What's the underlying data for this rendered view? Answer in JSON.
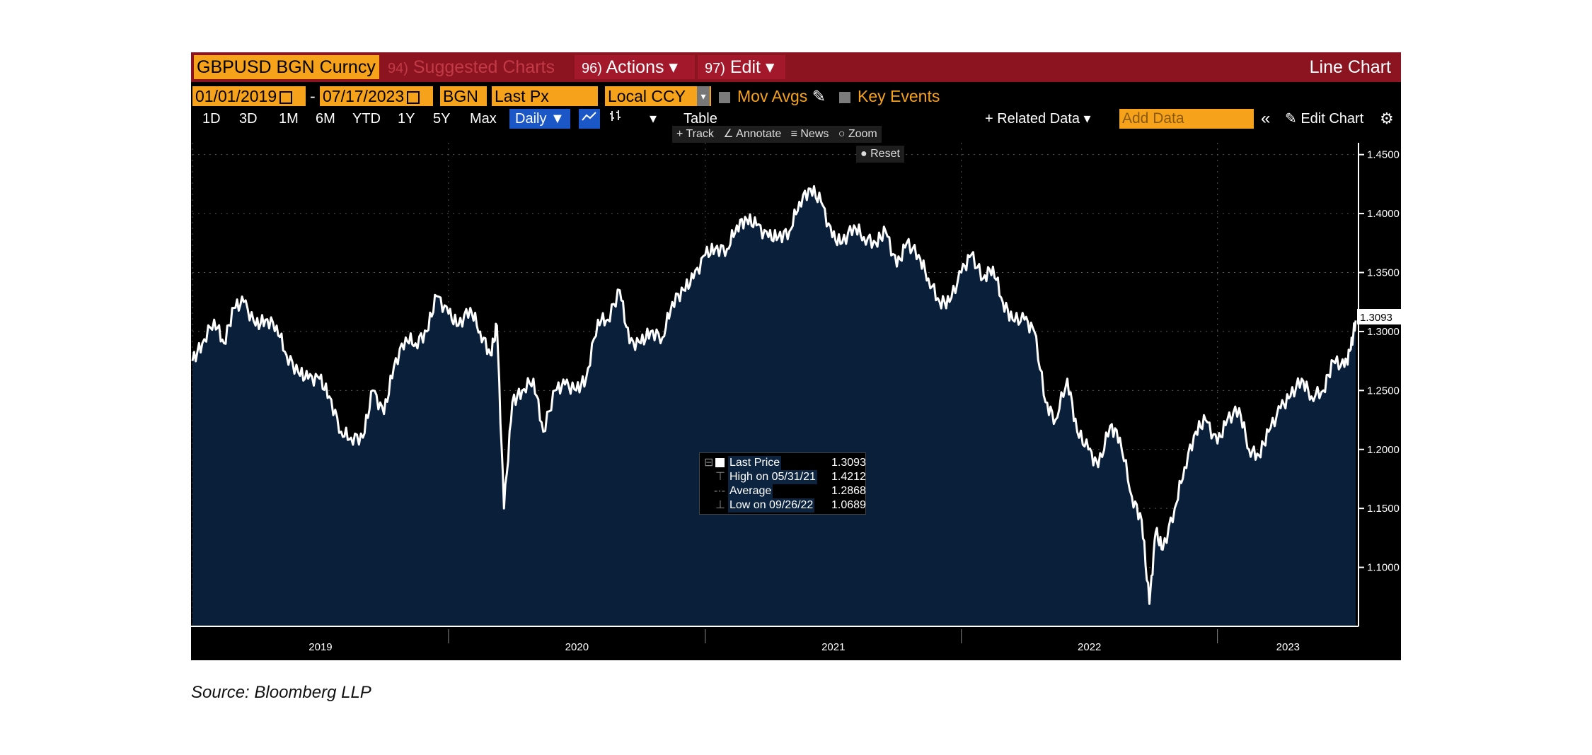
{
  "toolbar": {
    "ticker": "GBPUSD BGN Curncy",
    "suggested_num": "94)",
    "suggested_label": "Suggested Charts",
    "actions_num": "96)",
    "actions_label": "Actions ▾",
    "edit_num": "97)",
    "edit_label": "Edit ▾",
    "chart_type": "Line Chart"
  },
  "controls": {
    "start_date": "01/01/2019",
    "dash": "-",
    "end_date": "07/17/2023",
    "source": "BGN",
    "field": "Last Px",
    "currency": "Local CCY",
    "mov_avgs": "Mov Avgs",
    "key_events": "Key Events"
  },
  "ranges": [
    "1D",
    "3D",
    "1M",
    "6M",
    "YTD",
    "1Y",
    "5Y",
    "Max"
  ],
  "frequency": "Daily ▼",
  "table_label": "Table",
  "related_data": "+ Related Data ▾",
  "add_data_placeholder": "Add Data",
  "collapse_icon": "«",
  "edit_chart": "Edit Chart",
  "tools": {
    "track": "Track",
    "annotate": "Annotate",
    "news": "News",
    "zoom": "Zoom",
    "reset": "Reset"
  },
  "legend": {
    "last_label": "Last Price",
    "last_value": "1.3093",
    "high_label": "High on 05/31/21",
    "high_value": "1.4212",
    "avg_label": "Average",
    "avg_value": "1.2868",
    "low_label": "Low on 09/26/22",
    "low_value": "1.0689"
  },
  "source_text": "Source: Bloomberg LLP",
  "colors": {
    "line": "#ffffff",
    "area": "#0a1f3a",
    "header": "#8b1420",
    "field": "#f7a21b",
    "selected": "#1c57c8"
  },
  "chart_data": {
    "type": "area",
    "y_range": [
      1.05,
      1.46
    ],
    "x_range": [
      "2019-01-01",
      "2023-07-17"
    ],
    "yticks": [
      "1.1000",
      "1.1500",
      "1.2000",
      "1.2500",
      "1.3000",
      "1.3500",
      "1.4000",
      "1.4500"
    ],
    "xticks": [
      "2019",
      "2020",
      "2021",
      "2022",
      "2023"
    ],
    "last_value": "1.3093",
    "points": [
      [
        "2019-01-01",
        1.275
      ],
      [
        "2019-01-15",
        1.29
      ],
      [
        "2019-02-01",
        1.31
      ],
      [
        "2019-02-15",
        1.29
      ],
      [
        "2019-03-01",
        1.32
      ],
      [
        "2019-03-15",
        1.325
      ],
      [
        "2019-04-01",
        1.305
      ],
      [
        "2019-04-15",
        1.31
      ],
      [
        "2019-05-01",
        1.305
      ],
      [
        "2019-05-15",
        1.28
      ],
      [
        "2019-06-01",
        1.265
      ],
      [
        "2019-06-15",
        1.26
      ],
      [
        "2019-07-01",
        1.26
      ],
      [
        "2019-07-15",
        1.245
      ],
      [
        "2019-08-01",
        1.215
      ],
      [
        "2019-08-15",
        1.21
      ],
      [
        "2019-09-01",
        1.21
      ],
      [
        "2019-09-15",
        1.25
      ],
      [
        "2019-10-01",
        1.23
      ],
      [
        "2019-10-15",
        1.27
      ],
      [
        "2019-11-01",
        1.295
      ],
      [
        "2019-11-15",
        1.29
      ],
      [
        "2019-12-01",
        1.3
      ],
      [
        "2019-12-15",
        1.33
      ],
      [
        "2020-01-01",
        1.315
      ],
      [
        "2020-01-15",
        1.305
      ],
      [
        "2020-02-01",
        1.32
      ],
      [
        "2020-02-15",
        1.3
      ],
      [
        "2020-03-01",
        1.28
      ],
      [
        "2020-03-10",
        1.305
      ],
      [
        "2020-03-20",
        1.15
      ],
      [
        "2020-04-01",
        1.24
      ],
      [
        "2020-04-15",
        1.25
      ],
      [
        "2020-05-01",
        1.26
      ],
      [
        "2020-05-15",
        1.215
      ],
      [
        "2020-06-01",
        1.25
      ],
      [
        "2020-06-15",
        1.255
      ],
      [
        "2020-07-01",
        1.25
      ],
      [
        "2020-07-15",
        1.26
      ],
      [
        "2020-08-01",
        1.31
      ],
      [
        "2020-08-15",
        1.31
      ],
      [
        "2020-09-01",
        1.335
      ],
      [
        "2020-09-15",
        1.29
      ],
      [
        "2020-10-01",
        1.29
      ],
      [
        "2020-10-15",
        1.3
      ],
      [
        "2020-11-01",
        1.295
      ],
      [
        "2020-11-15",
        1.325
      ],
      [
        "2020-12-01",
        1.335
      ],
      [
        "2020-12-15",
        1.345
      ],
      [
        "2021-01-01",
        1.365
      ],
      [
        "2021-01-15",
        1.37
      ],
      [
        "2021-02-01",
        1.37
      ],
      [
        "2021-02-15",
        1.39
      ],
      [
        "2021-03-01",
        1.395
      ],
      [
        "2021-03-15",
        1.39
      ],
      [
        "2021-04-01",
        1.38
      ],
      [
        "2021-04-15",
        1.38
      ],
      [
        "2021-05-01",
        1.385
      ],
      [
        "2021-05-15",
        1.41
      ],
      [
        "2021-05-31",
        1.421
      ],
      [
        "2021-06-15",
        1.41
      ],
      [
        "2021-07-01",
        1.38
      ],
      [
        "2021-07-15",
        1.375
      ],
      [
        "2021-08-01",
        1.39
      ],
      [
        "2021-08-15",
        1.38
      ],
      [
        "2021-09-01",
        1.375
      ],
      [
        "2021-09-15",
        1.385
      ],
      [
        "2021-10-01",
        1.355
      ],
      [
        "2021-10-15",
        1.375
      ],
      [
        "2021-11-01",
        1.365
      ],
      [
        "2021-11-15",
        1.345
      ],
      [
        "2021-12-01",
        1.325
      ],
      [
        "2021-12-15",
        1.325
      ],
      [
        "2022-01-01",
        1.35
      ],
      [
        "2022-01-15",
        1.365
      ],
      [
        "2022-02-01",
        1.345
      ],
      [
        "2022-02-15",
        1.355
      ],
      [
        "2022-03-01",
        1.325
      ],
      [
        "2022-03-15",
        1.31
      ],
      [
        "2022-04-01",
        1.31
      ],
      [
        "2022-04-15",
        1.3
      ],
      [
        "2022-05-01",
        1.24
      ],
      [
        "2022-05-15",
        1.225
      ],
      [
        "2022-06-01",
        1.26
      ],
      [
        "2022-06-15",
        1.215
      ],
      [
        "2022-07-01",
        1.2
      ],
      [
        "2022-07-15",
        1.185
      ],
      [
        "2022-08-01",
        1.22
      ],
      [
        "2022-08-15",
        1.21
      ],
      [
        "2022-09-01",
        1.16
      ],
      [
        "2022-09-15",
        1.14
      ],
      [
        "2022-09-26",
        1.069
      ],
      [
        "2022-10-05",
        1.13
      ],
      [
        "2022-10-15",
        1.115
      ],
      [
        "2022-11-01",
        1.15
      ],
      [
        "2022-11-15",
        1.185
      ],
      [
        "2022-12-01",
        1.215
      ],
      [
        "2022-12-15",
        1.225
      ],
      [
        "2023-01-01",
        1.205
      ],
      [
        "2023-01-15",
        1.225
      ],
      [
        "2023-02-01",
        1.235
      ],
      [
        "2023-02-15",
        1.2
      ],
      [
        "2023-03-01",
        1.195
      ],
      [
        "2023-03-15",
        1.215
      ],
      [
        "2023-04-01",
        1.235
      ],
      [
        "2023-04-15",
        1.245
      ],
      [
        "2023-05-01",
        1.26
      ],
      [
        "2023-05-15",
        1.245
      ],
      [
        "2023-06-01",
        1.25
      ],
      [
        "2023-06-15",
        1.275
      ],
      [
        "2023-07-01",
        1.27
      ],
      [
        "2023-07-10",
        1.285
      ],
      [
        "2023-07-17",
        1.3093
      ]
    ]
  }
}
